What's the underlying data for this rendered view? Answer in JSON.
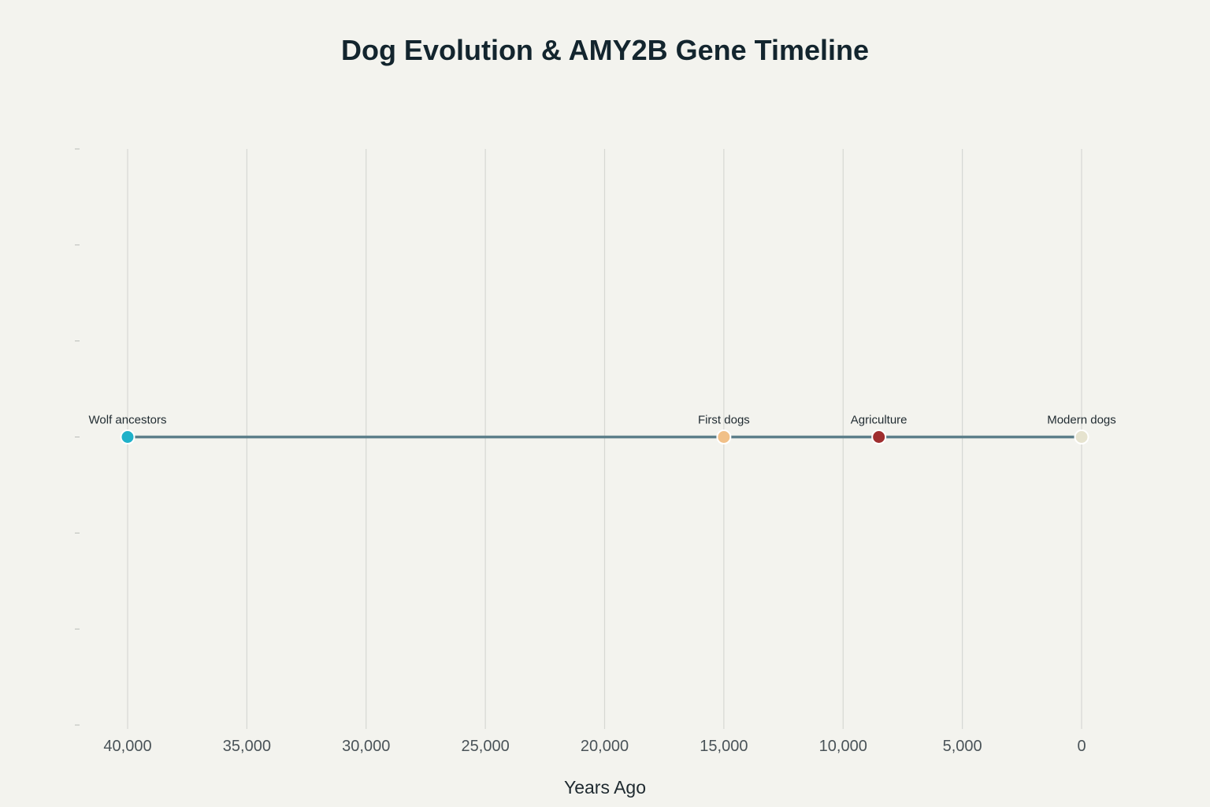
{
  "chart_data": {
    "type": "scatter",
    "title": "Dog Evolution & AMY2B Gene Timeline",
    "xlabel": "Years Ago",
    "ylabel": "",
    "x_reversed": true,
    "xlim": [
      40000,
      0
    ],
    "x_ticks": [
      40000,
      35000,
      30000,
      25000,
      20000,
      15000,
      10000,
      5000,
      0
    ],
    "x_tick_labels": [
      "40,000",
      "35,000",
      "30,000",
      "25,000",
      "20,000",
      "15,000",
      "10,000",
      "5,000",
      "0"
    ],
    "ylim": [
      -1,
      1
    ],
    "y_tick_count": 7,
    "grid": "vertical",
    "line_color": "#5d7f8a",
    "points": [
      {
        "label": "Wolf ancestors",
        "x": 40000,
        "y": 0,
        "color": "#1fb1c9"
      },
      {
        "label": "First dogs",
        "x": 15000,
        "y": 0,
        "color": "#f1c088"
      },
      {
        "label": "Agriculture",
        "x": 8500,
        "y": 0,
        "color": "#9f2e2f"
      },
      {
        "label": "Modern dogs",
        "x": 0,
        "y": 0,
        "color": "#e6e3cf"
      }
    ]
  }
}
